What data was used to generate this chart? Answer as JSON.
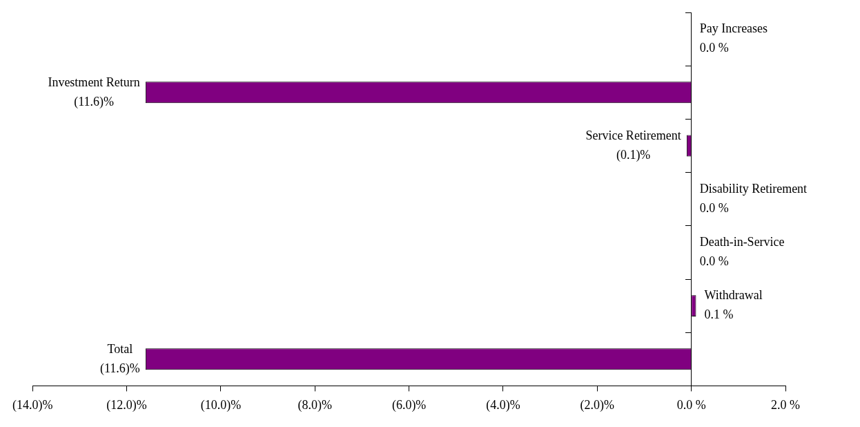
{
  "chart_data": {
    "type": "bar",
    "orientation": "horizontal",
    "categories": [
      "Pay Increases",
      "Investment Return",
      "Service Retirement",
      "Disability Retirement",
      "Death-in-Service",
      "Withdrawal",
      "Total"
    ],
    "values": [
      0.0,
      -11.6,
      -0.1,
      0.0,
      0.0,
      0.1,
      -11.6
    ],
    "value_labels": [
      "0.0 %",
      "(11.6)%",
      "(0.1)%",
      "0.0 %",
      "0.0 %",
      "0.1 %",
      "(11.6)%"
    ],
    "color": "#800080",
    "xlim": [
      -14,
      2
    ],
    "xticks": [
      {
        "value": -14,
        "label": "(14.0)%"
      },
      {
        "value": -12,
        "label": "(12.0)%"
      },
      {
        "value": -10,
        "label": "(10.0)%"
      },
      {
        "value": -8,
        "label": "(8.0)%"
      },
      {
        "value": -6,
        "label": "(6.0)%"
      },
      {
        "value": -4,
        "label": "(4.0)%"
      },
      {
        "value": -2,
        "label": "(2.0)%"
      },
      {
        "value": 0,
        "label": "0.0 %"
      },
      {
        "value": 2,
        "label": "2.0 %"
      }
    ],
    "grid": false,
    "legend": false
  }
}
